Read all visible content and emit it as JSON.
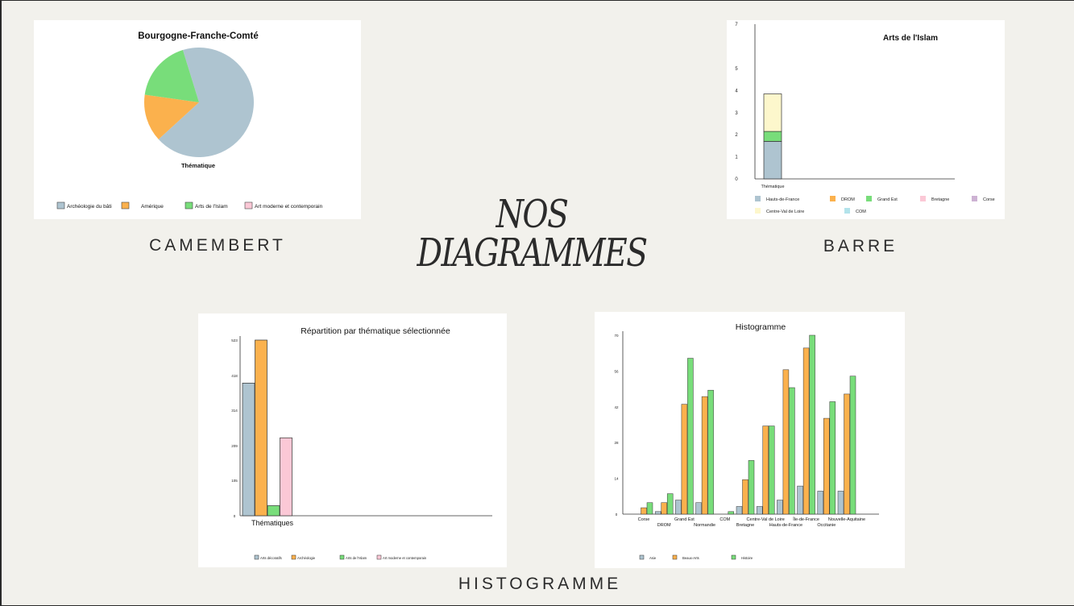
{
  "headline": {
    "line1": "NOS",
    "line2": "DIAGRAMMES"
  },
  "captions": {
    "pie": "CAMEMBERT",
    "bar": "BARRE",
    "histo": "HISTOGRAMME"
  },
  "colors": {
    "blue": "#aec4d0",
    "orange": "#fbb14d",
    "green": "#78dd7a",
    "pink": "#fbc8d6",
    "purple": "#cdb2d3",
    "cream": "#fdf7cc",
    "teal": "#b3e3eb"
  },
  "chart_data": [
    {
      "type": "pie",
      "title": "Bourgogne-Franche-Comté",
      "xlabel": "Thématique",
      "categories": [
        "Archéologie du bâti",
        "Amérique",
        "Arts de l'Islam",
        "Art moderne et contemporain"
      ],
      "values": [
        68,
        14,
        18,
        0
      ],
      "legend_position": "bottom"
    },
    {
      "type": "bar",
      "title": "Arts de l'Islam",
      "xlabel": "Thématique",
      "categories": [
        "Thématique"
      ],
      "stacked": true,
      "ylim": [
        0,
        7
      ],
      "yticks": [
        0,
        1,
        2,
        3,
        4,
        5,
        7
      ],
      "series": [
        {
          "name": "Hauts-de-France",
          "values": [
            1.7
          ]
        },
        {
          "name": "DROM",
          "values": [
            0
          ]
        },
        {
          "name": "Grand Est",
          "values": [
            0.45
          ]
        },
        {
          "name": "Bretagne",
          "values": [
            0
          ]
        },
        {
          "name": "Corse",
          "values": [
            0
          ]
        },
        {
          "name": "Centre-Val de Loire",
          "values": [
            1.7
          ]
        },
        {
          "name": "COM",
          "values": [
            0
          ]
        }
      ],
      "legend_position": "bottom"
    },
    {
      "type": "bar",
      "title": "Répartition par thématique sélectionnée",
      "xlabel": "Thématiques",
      "ylim": [
        0,
        523
      ],
      "yticks": [
        0,
        105,
        209,
        314,
        418,
        523
      ],
      "series": [
        {
          "name": "Arts décoratifs",
          "values": [
            395
          ]
        },
        {
          "name": "Archéologie",
          "values": [
            523
          ]
        },
        {
          "name": "Arts de l'Islam",
          "values": [
            30
          ]
        },
        {
          "name": "Art moderne et contemporain",
          "values": [
            232
          ]
        }
      ],
      "legend_position": "bottom"
    },
    {
      "type": "bar",
      "title": "Histogramme",
      "ylim": [
        0,
        70
      ],
      "yticks": [
        0,
        14,
        28,
        42,
        56,
        70
      ],
      "categories": [
        "Corse",
        "DROM",
        "Grand Est",
        "Normandie",
        "COM",
        "Bretagne",
        "Centre-Val de Loire",
        "Hauts-de-France",
        "Île-de-France",
        "Occitanie",
        "Nouvelle-Aquitaine"
      ],
      "series": [
        {
          "name": "Asie",
          "values": [
            0,
            1,
            5.5,
            4.5,
            0,
            3,
            3,
            5.5,
            11,
            9,
            9
          ]
        },
        {
          "name": "Beaux-Arts",
          "values": [
            2.5,
            4.5,
            43,
            46,
            0,
            13.5,
            34.5,
            56.5,
            65,
            37.5,
            47
          ]
        },
        {
          "name": "Histoire",
          "values": [
            4.5,
            8,
            61,
            48.5,
            1,
            21,
            34.5,
            49.5,
            70,
            44,
            54
          ]
        }
      ],
      "legend_position": "bottom"
    }
  ]
}
